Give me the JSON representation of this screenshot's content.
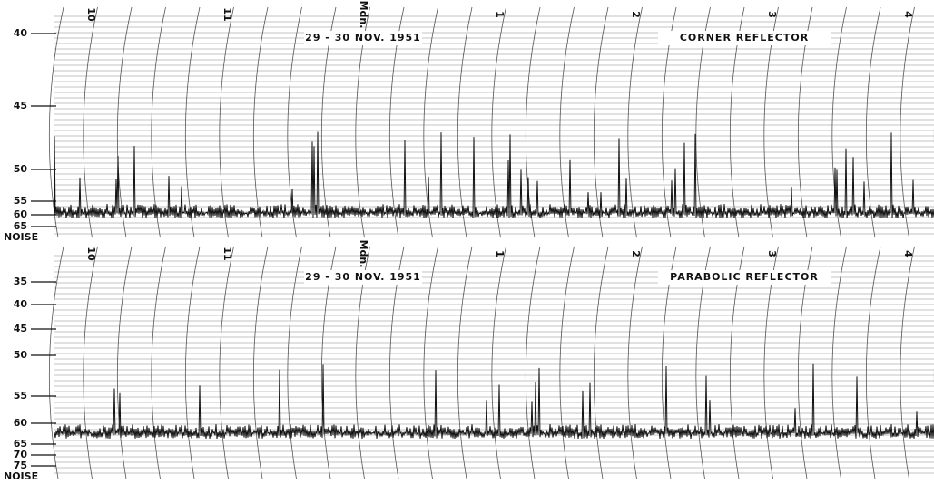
{
  "panels": [
    {
      "date": "29 - 30 NOV. 1951",
      "title": "CORNER REFLECTOR",
      "y_labels": [
        "40",
        "45",
        "50",
        "55",
        "60",
        "65"
      ],
      "noise": "NOISE",
      "time_labels": [
        "10",
        "11",
        "Mdn.",
        "1",
        "2",
        "3",
        "4"
      ]
    },
    {
      "date": "29 - 30 NOV. 1951",
      "title": "PARABOLIC REFLECTOR",
      "y_labels": [
        "35",
        "40",
        "45",
        "50",
        "55",
        "60",
        "65",
        "70",
        "75"
      ],
      "noise": "NOISE",
      "time_labels": [
        "10",
        "11",
        "Mdn.",
        "1",
        "2",
        "3",
        "4"
      ]
    }
  ]
}
